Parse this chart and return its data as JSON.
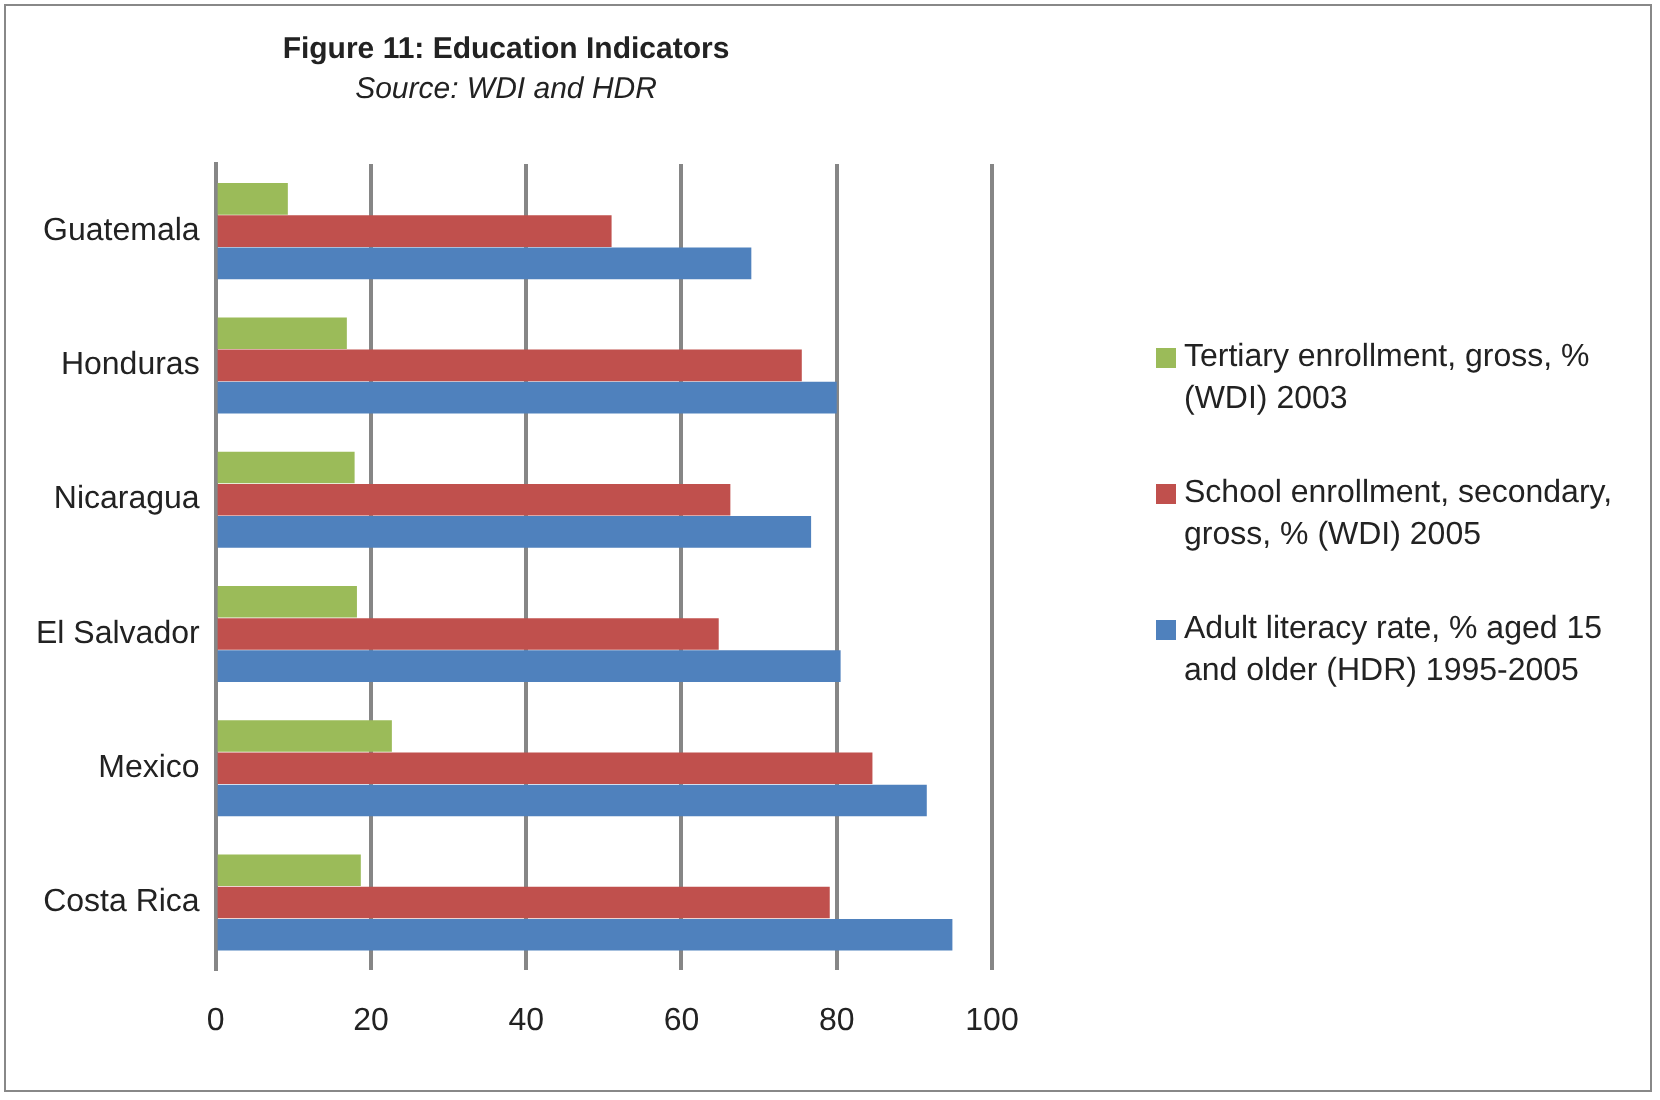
{
  "chart_data": {
    "type": "bar",
    "orientation": "horizontal",
    "title": "Figure 11: Education Indicators",
    "subtitle": "Source: WDI and HDR",
    "categories": [
      "Guatemala",
      "Honduras",
      "Nicaragua",
      "El Salvador",
      "Mexico",
      "Costa Rica"
    ],
    "series": [
      {
        "name": "Tertiary enrollment, gross, % (WDI) 2003",
        "color": "#9bbb59",
        "values": [
          9.3,
          16.9,
          17.9,
          18.2,
          22.7,
          18.7
        ]
      },
      {
        "name": "School enrollment, secondary, gross, % (WDI) 2005",
        "color": "#c0504d",
        "values": [
          51,
          75.5,
          66.3,
          64.8,
          84.6,
          79.1
        ]
      },
      {
        "name": "Adult literacy rate, % aged 15 and older (HDR) 1995-2005",
        "color": "#4f81bd",
        "values": [
          69,
          80,
          76.7,
          80.5,
          91.6,
          94.9
        ]
      }
    ],
    "xlim": [
      0,
      100
    ],
    "xticks": [
      0,
      20,
      40,
      60,
      80,
      100
    ],
    "grid": "x",
    "legend": "right"
  }
}
